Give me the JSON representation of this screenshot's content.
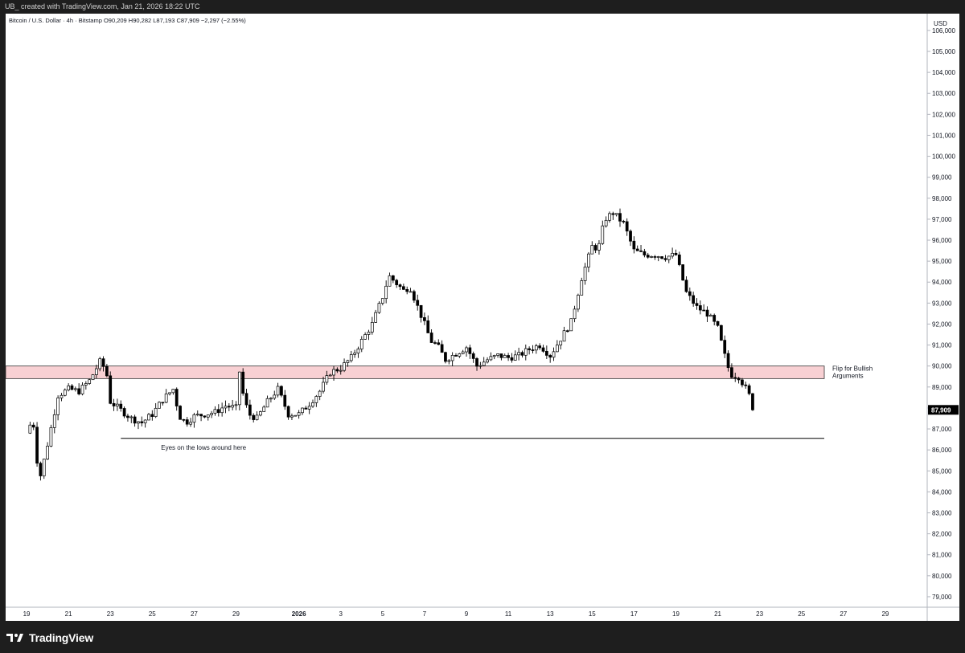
{
  "header": {
    "credit": "UB_ created with TradingView.com, Jan 21, 2026 18:22 UTC"
  },
  "symbol_line": "Bitcoin / U.S. Dollar · 4h · Bitstamp  O90,209  H90,282  L87,193  C87,909  −2,297 (−2.55%)",
  "brand": {
    "name": "TradingView"
  },
  "colors": {
    "up_candle": "#ffffff",
    "down_candle": "#000000",
    "zone_fill": "#f8d0d3",
    "background": "#ffffff"
  },
  "chart_data": {
    "type": "candlestick",
    "symbol": "Bitcoin / U.S. Dollar",
    "interval": "4h",
    "exchange": "Bitstamp",
    "ohlc": {
      "open": "90,209",
      "high": "90,282",
      "low": "87,193",
      "close": "87,909",
      "change": "−2,297",
      "change_pct": "−2.55%"
    },
    "ylabel": "USD",
    "ylim": [
      78500,
      106800
    ],
    "y_ticks": [
      79000,
      80000,
      81000,
      82000,
      83000,
      84000,
      85000,
      86000,
      87000,
      88000,
      89000,
      90000,
      91000,
      92000,
      93000,
      94000,
      95000,
      96000,
      97000,
      98000,
      99000,
      100000,
      101000,
      102000,
      103000,
      104000,
      105000,
      106000
    ],
    "y_tick_labels": [
      "79,000",
      "80,000",
      "81,000",
      "82,000",
      "83,000",
      "84,000",
      "85,000",
      "86,000",
      "87,000",
      "88,000",
      "89,000",
      "90,000",
      "91,000",
      "92,000",
      "93,000",
      "94,000",
      "95,000",
      "96,000",
      "97,000",
      "98,000",
      "99,000",
      "100,000",
      "101,000",
      "102,000",
      "103,000",
      "104,000",
      "105,000",
      "106,000"
    ],
    "x_tick_labels": [
      "19",
      "21",
      "23",
      "25",
      "27",
      "29",
      "2026",
      "3",
      "5",
      "7",
      "9",
      "11",
      "13",
      "15",
      "17",
      "19",
      "21",
      "23",
      "25",
      "27",
      "29"
    ],
    "x_ticks_days": [
      0,
      2,
      4,
      6,
      8,
      10,
      13,
      15,
      17,
      19,
      21,
      23,
      25,
      27,
      29,
      31,
      33,
      35,
      37,
      39,
      41
    ],
    "x_range_days": [
      -1,
      43
    ],
    "last_price": {
      "value": 87909,
      "label": "87,909"
    },
    "zones": [
      {
        "label_lines": [
          "Flip for Bullish",
          "Arguments"
        ],
        "from": 89400,
        "to": 90000
      }
    ],
    "levels": [
      {
        "label": "Eyes on the lows around here",
        "value": 86550,
        "start_day": 4.5
      }
    ],
    "path": [
      [
        0,
        86800
      ],
      [
        0.3,
        87500
      ],
      [
        0.6,
        84500
      ],
      [
        0.9,
        85800
      ],
      [
        1.5,
        88600
      ],
      [
        2,
        88900
      ],
      [
        2.5,
        88800
      ],
      [
        3,
        89300
      ],
      [
        3.5,
        90200
      ],
      [
        3.8,
        89800
      ],
      [
        4,
        88300
      ],
      [
        4.5,
        87900
      ],
      [
        5,
        87500
      ],
      [
        5.5,
        87300
      ],
      [
        6,
        87700
      ],
      [
        6.5,
        88400
      ],
      [
        7,
        88900
      ],
      [
        7.3,
        87600
      ],
      [
        7.6,
        87300
      ],
      [
        8,
        87600
      ],
      [
        8.5,
        87700
      ],
      [
        9,
        87800
      ],
      [
        9.5,
        88100
      ],
      [
        10,
        88000
      ],
      [
        10.1,
        90200
      ],
      [
        10.3,
        88800
      ],
      [
        10.6,
        87700
      ],
      [
        11,
        87500
      ],
      [
        11.5,
        88300
      ],
      [
        12,
        88900
      ],
      [
        12.5,
        87700
      ],
      [
        13,
        87700
      ],
      [
        13.5,
        88200
      ],
      [
        14,
        88800
      ],
      [
        14.5,
        89700
      ],
      [
        15,
        89900
      ],
      [
        15.5,
        90400
      ],
      [
        16,
        91200
      ],
      [
        16.5,
        92000
      ],
      [
        17,
        93300
      ],
      [
        17.3,
        94300
      ],
      [
        17.6,
        94000
      ],
      [
        18,
        93600
      ],
      [
        18.3,
        93800
      ],
      [
        18.6,
        93000
      ],
      [
        19,
        92000
      ],
      [
        19.3,
        91200
      ],
      [
        19.6,
        91000
      ],
      [
        20,
        90300
      ],
      [
        20.5,
        90600
      ],
      [
        21,
        90900
      ],
      [
        21.5,
        90000
      ],
      [
        22,
        90300
      ],
      [
        22.5,
        90500
      ],
      [
        23,
        90400
      ],
      [
        23.5,
        90500
      ],
      [
        24,
        90800
      ],
      [
        24.5,
        91000
      ],
      [
        25,
        90500
      ],
      [
        25.5,
        91300
      ],
      [
        26,
        92100
      ],
      [
        26.5,
        94200
      ],
      [
        27,
        95700
      ],
      [
        27.3,
        95600
      ],
      [
        27.6,
        97000
      ],
      [
        28,
        97300
      ],
      [
        28.5,
        96800
      ],
      [
        29,
        95500
      ],
      [
        29.5,
        95300
      ],
      [
        30,
        95300
      ],
      [
        30.5,
        95200
      ],
      [
        31,
        95300
      ],
      [
        31.5,
        93500
      ],
      [
        32,
        92800
      ],
      [
        32.5,
        92500
      ],
      [
        33,
        91800
      ],
      [
        33.3,
        90600
      ],
      [
        33.6,
        89600
      ],
      [
        34,
        89500
      ],
      [
        34.3,
        89000
      ],
      [
        34.5,
        88600
      ],
      [
        34.7,
        87909
      ]
    ],
    "annotations": [
      "Flip for Bullish Arguments",
      "Eyes on the lows around here"
    ]
  }
}
